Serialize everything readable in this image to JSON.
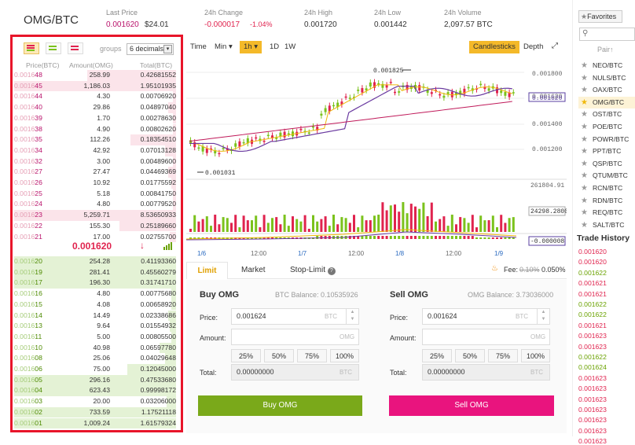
{
  "header": {
    "pair": "OMG/BTC",
    "last_price_label": "Last Price",
    "last_price": "0.001620",
    "last_price_usd": "$24.01",
    "change_label": "24h Change",
    "change": "-0.000017",
    "change_pct": "-1.04%",
    "high_label": "24h High",
    "high": "0.001720",
    "low_label": "24h Low",
    "low": "0.001442",
    "volume_label": "24h Volume",
    "volume": "2,097.57 BTC"
  },
  "orderbook": {
    "groups_label": "groups",
    "decimals": "6 decimals",
    "col_price": "Price(BTC)",
    "col_amount": "Amount(OMG)",
    "col_total": "Total(BTC)",
    "asks": [
      {
        "prefix": "0.0016",
        "suffix": "48",
        "amount": "258.99",
        "total": "0.42681552",
        "depth": 0.55
      },
      {
        "prefix": "0.0016",
        "suffix": "45",
        "amount": "1,186.03",
        "total": "1.95101935",
        "depth": 1.0
      },
      {
        "prefix": "0.0016",
        "suffix": "44",
        "amount": "4.30",
        "total": "0.00706920",
        "depth": 0.02
      },
      {
        "prefix": "0.0016",
        "suffix": "40",
        "amount": "29.86",
        "total": "0.04897040",
        "depth": 0.05
      },
      {
        "prefix": "0.0016",
        "suffix": "39",
        "amount": "1.70",
        "total": "0.00278630",
        "depth": 0.02
      },
      {
        "prefix": "0.0016",
        "suffix": "38",
        "amount": "4.90",
        "total": "0.00802620",
        "depth": 0.02
      },
      {
        "prefix": "0.0016",
        "suffix": "35",
        "amount": "112.26",
        "total": "0.18354510",
        "depth": 0.28
      },
      {
        "prefix": "0.0016",
        "suffix": "34",
        "amount": "42.92",
        "total": "0.07013128",
        "depth": 0.07
      },
      {
        "prefix": "0.0016",
        "suffix": "32",
        "amount": "3.00",
        "total": "0.00489600",
        "depth": 0.02
      },
      {
        "prefix": "0.0016",
        "suffix": "27",
        "amount": "27.47",
        "total": "0.04469369",
        "depth": 0.05
      },
      {
        "prefix": "0.0016",
        "suffix": "26",
        "amount": "10.92",
        "total": "0.01775592",
        "depth": 0.03
      },
      {
        "prefix": "0.0016",
        "suffix": "25",
        "amount": "5.18",
        "total": "0.00841750",
        "depth": 0.02
      },
      {
        "prefix": "0.0016",
        "suffix": "24",
        "amount": "4.80",
        "total": "0.00779520",
        "depth": 0.02
      },
      {
        "prefix": "0.0016",
        "suffix": "23",
        "amount": "5,259.71",
        "total": "8.53650933",
        "depth": 1.0
      },
      {
        "prefix": "0.0016",
        "suffix": "22",
        "amount": "155.30",
        "total": "0.25189660",
        "depth": 0.35
      },
      {
        "prefix": "0.0016",
        "suffix": "21",
        "amount": "17.00",
        "total": "0.02755700",
        "depth": 0.04
      }
    ],
    "mid_price": "0.001620",
    "mid_arrow": "↓",
    "bids": [
      {
        "prefix": "0.0016",
        "suffix": "20",
        "amount": "254.28",
        "total": "0.41193360",
        "depth": 1.0
      },
      {
        "prefix": "0.0016",
        "suffix": "19",
        "amount": "281.41",
        "total": "0.45560279",
        "depth": 1.0
      },
      {
        "prefix": "0.0016",
        "suffix": "17",
        "amount": "196.30",
        "total": "0.31741710",
        "depth": 1.0
      },
      {
        "prefix": "0.0016",
        "suffix": "16",
        "amount": "4.80",
        "total": "0.00775680",
        "depth": 0.03
      },
      {
        "prefix": "0.0016",
        "suffix": "15",
        "amount": "4.08",
        "total": "0.00658920",
        "depth": 0.03
      },
      {
        "prefix": "0.0016",
        "suffix": "14",
        "amount": "14.49",
        "total": "0.02338686",
        "depth": 0.05
      },
      {
        "prefix": "0.0016",
        "suffix": "13",
        "amount": "9.64",
        "total": "0.01554932",
        "depth": 0.04
      },
      {
        "prefix": "0.0016",
        "suffix": "11",
        "amount": "5.00",
        "total": "0.00805500",
        "depth": 0.03
      },
      {
        "prefix": "0.0016",
        "suffix": "10",
        "amount": "40.98",
        "total": "0.06597780",
        "depth": 0.1
      },
      {
        "prefix": "0.0016",
        "suffix": "08",
        "amount": "25.06",
        "total": "0.04029648",
        "depth": 0.07
      },
      {
        "prefix": "0.0016",
        "suffix": "06",
        "amount": "75.00",
        "total": "0.12045000",
        "depth": 0.3
      },
      {
        "prefix": "0.0016",
        "suffix": "05",
        "amount": "296.16",
        "total": "0.47533680",
        "depth": 1.0
      },
      {
        "prefix": "0.0016",
        "suffix": "04",
        "amount": "623.43",
        "total": "0.99998172",
        "depth": 1.0
      },
      {
        "prefix": "0.0016",
        "suffix": "03",
        "amount": "20.00",
        "total": "0.03206000",
        "depth": 0.06
      },
      {
        "prefix": "0.0016",
        "suffix": "02",
        "amount": "733.59",
        "total": "1.17521118",
        "depth": 1.0
      },
      {
        "prefix": "0.0016",
        "suffix": "01",
        "amount": "1,009.24",
        "total": "1.61579324",
        "depth": 1.0
      }
    ]
  },
  "chart": {
    "intervals": [
      "Time",
      "Min",
      "1h",
      "1D",
      "1W"
    ],
    "active_interval": "1h",
    "candlesticks_label": "Candlesticks",
    "depth_label": "Depth",
    "price_ticks": [
      "0.001800",
      "0.001620",
      "0.001400",
      "0.001200"
    ],
    "high_marker": "0.001825",
    "low_marker": "0.001031",
    "volume_ticks": [
      "261804.91",
      "24298.2800"
    ],
    "macd_tick": "-0.000008",
    "time_ticks": [
      "1/6",
      "12:00",
      "1/7",
      "12:00",
      "1/8",
      "12:00",
      "1/9"
    ],
    "colors": {
      "up": "#7bc21c",
      "down": "#e0234e",
      "ma1": "#f0b80a",
      "ma2": "#6a3aa0",
      "ma3": "#c01a5a"
    }
  },
  "trade": {
    "tabs": [
      "Limit",
      "Market",
      "Stop-Limit"
    ],
    "active_tab": "Limit",
    "fee_label": "Fee:",
    "fee_old": "0.10%",
    "fee_new": "0.050%",
    "buy": {
      "title": "Buy OMG",
      "balance": "BTC Balance: 0.10535926",
      "price_label": "Price:",
      "price_value": "0.001624",
      "price_unit": "BTC",
      "amount_label": "Amount:",
      "amount_unit": "OMG",
      "total_label": "Total:",
      "total_value": "0.00000000",
      "total_unit": "BTC",
      "button": "Buy OMG"
    },
    "sell": {
      "title": "Sell OMG",
      "balance": "OMG Balance: 3.73036000",
      "price_label": "Price:",
      "price_value": "0.001624",
      "price_unit": "BTC",
      "amount_label": "Amount:",
      "amount_unit": "OMG",
      "total_label": "Total:",
      "total_value": "0.00000000",
      "total_unit": "BTC",
      "button": "Sell OMG"
    },
    "percents": [
      "25%",
      "50%",
      "75%",
      "100%"
    ]
  },
  "sidebar": {
    "favorites_label": "Favorites",
    "pair_header": "Pair",
    "pairs": [
      "NEO/BTC",
      "NULS/BTC",
      "OAX/BTC",
      "OMG/BTC",
      "OST/BTC",
      "POE/BTC",
      "POWR/BTC",
      "PPT/BTC",
      "QSP/BTC",
      "QTUM/BTC",
      "RCN/BTC",
      "RDN/BTC",
      "REQ/BTC",
      "SALT/BTC"
    ],
    "active_pair": "OMG/BTC",
    "trade_history_label": "Trade History",
    "trade_history": [
      {
        "price": "0.001620",
        "side": "sell"
      },
      {
        "price": "0.001620",
        "side": "sell"
      },
      {
        "price": "0.001622",
        "side": "buy"
      },
      {
        "price": "0.001621",
        "side": "sell"
      },
      {
        "price": "0.001621",
        "side": "sell"
      },
      {
        "price": "0.001622",
        "side": "buy"
      },
      {
        "price": "0.001622",
        "side": "buy"
      },
      {
        "price": "0.001621",
        "side": "sell"
      },
      {
        "price": "0.001623",
        "side": "sell"
      },
      {
        "price": "0.001623",
        "side": "sell"
      },
      {
        "price": "0.001622",
        "side": "buy"
      },
      {
        "price": "0.001624",
        "side": "buy"
      },
      {
        "price": "0.001623",
        "side": "sell"
      },
      {
        "price": "0.001623",
        "side": "sell"
      },
      {
        "price": "0.001623",
        "side": "sell"
      },
      {
        "price": "0.001623",
        "side": "sell"
      },
      {
        "price": "0.001623",
        "side": "sell"
      },
      {
        "price": "0.001623",
        "side": "sell"
      },
      {
        "price": "0.001623",
        "side": "sell"
      }
    ]
  }
}
